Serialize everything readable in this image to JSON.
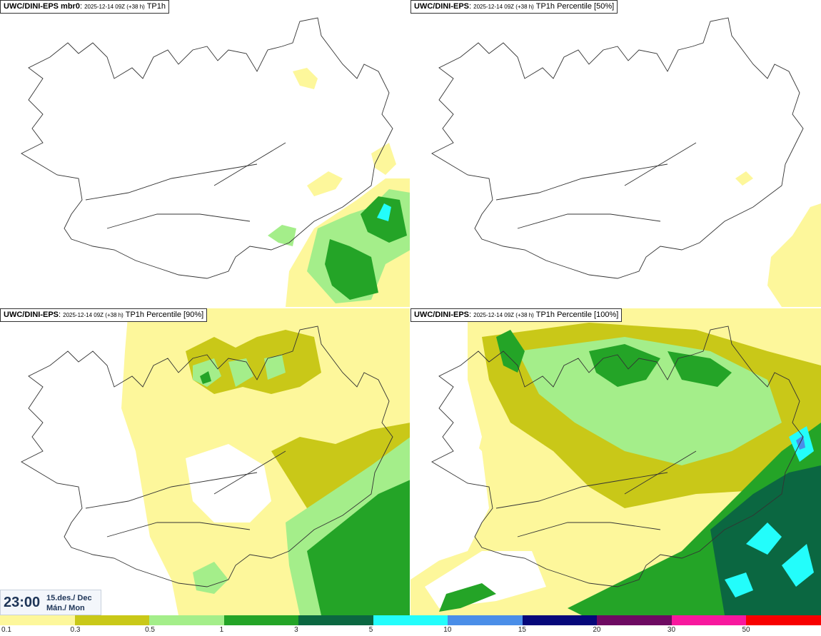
{
  "panels": [
    {
      "model": "UWC/DINI-EPS mbr0",
      "run": "2025-12-14 09Z (+38 h)",
      "field": "TP1h"
    },
    {
      "model": "UWC/DINI-EPS",
      "run": "2025-12-14 09Z (+38 h)",
      "field": "TP1h Percentile [50%]"
    },
    {
      "model": "UWC/DINI-EPS",
      "run": "2025-12-14 09Z (+38 h)",
      "field": "TP1h Percentile [90%]"
    },
    {
      "model": "UWC/DINI-EPS",
      "run": "2025-12-14 09Z (+38 h)",
      "field": "TP1h Percentile [100%]"
    }
  ],
  "valid_time": {
    "time": "23:00",
    "date_line1": "15.des./ Dec",
    "date_line2": "Mán./ Mon"
  },
  "legend": {
    "colors": [
      "#fdf79b",
      "#c9c818",
      "#a4ee8a",
      "#24a427",
      "#0b6741",
      "#23fdfb",
      "#4a8ee8",
      "#06087a",
      "#6e0a62",
      "#f8189e",
      "#f80000"
    ],
    "ticks": [
      "0.1",
      "0.3",
      "0.5",
      "1",
      "3",
      "5",
      "10",
      "15",
      "20",
      "30",
      "50"
    ]
  }
}
